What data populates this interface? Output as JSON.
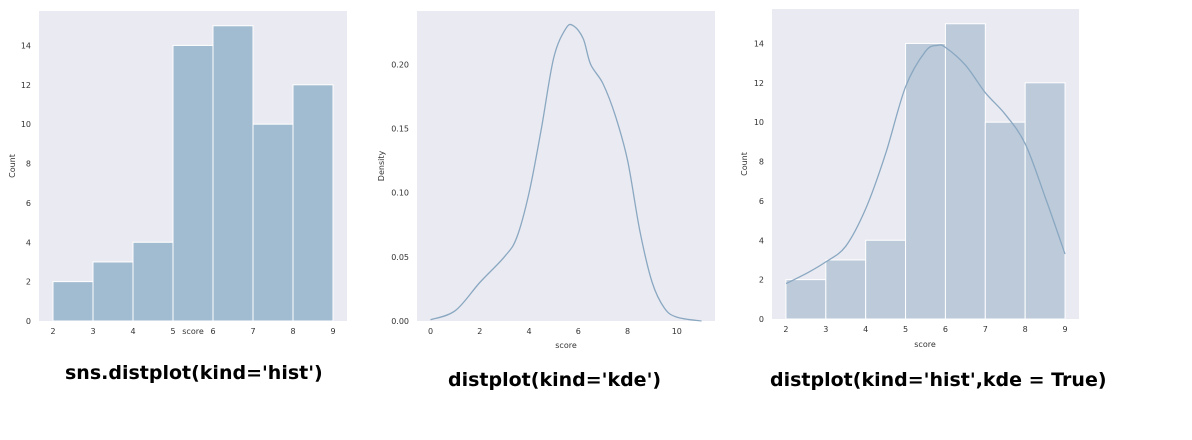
{
  "colors": {
    "panel": "#eaeaf2",
    "bar": "#a1bbd0",
    "bar_light": "#bccada",
    "line": "#8aa8c1"
  },
  "captions": [
    "sns.distplot(kind='hist')",
    "distplot(kind='kde')",
    "distplot(kind='hist',kde = True)"
  ],
  "chart_data": [
    {
      "type": "bar",
      "bin_edges": [
        2,
        3,
        4,
        5,
        6,
        7,
        8,
        9
      ],
      "values": [
        2,
        3,
        4,
        14,
        15,
        10,
        12
      ],
      "xlabel": "score",
      "ylabel": "Count",
      "xticks": [
        2,
        3,
        4,
        5,
        6,
        7,
        8,
        9
      ],
      "yticks": [
        0,
        2,
        4,
        6,
        8,
        10,
        12,
        14
      ],
      "xlim": [
        1.65,
        9.35
      ],
      "ylim": [
        0,
        15.75
      ],
      "grid": false
    },
    {
      "type": "line",
      "x": [
        0,
        1,
        2,
        3,
        3.5,
        4,
        4.5,
        5,
        5.5,
        5.8,
        6.2,
        6.5,
        7,
        7.5,
        8,
        8.5,
        9,
        9.5,
        10,
        11
      ],
      "y": [
        0.001,
        0.008,
        0.03,
        0.05,
        0.065,
        0.1,
        0.15,
        0.205,
        0.228,
        0.23,
        0.22,
        0.2,
        0.185,
        0.16,
        0.125,
        0.07,
        0.03,
        0.01,
        0.003,
        0.0
      ],
      "xlabel": "score",
      "ylabel": "Density",
      "xticks": [
        0,
        2,
        4,
        6,
        8,
        10
      ],
      "yticks": [
        "0.00",
        "0.05",
        "0.10",
        "0.15",
        "0.20"
      ],
      "xlim": [
        -0.55,
        11.55
      ],
      "ylim": [
        0,
        0.2415
      ],
      "grid": false
    },
    {
      "type": "bar",
      "bin_edges": [
        2,
        3,
        4,
        5,
        6,
        7,
        8,
        9
      ],
      "values": [
        2,
        3,
        4,
        14,
        15,
        10,
        12
      ],
      "kde": {
        "x": [
          2,
          2.5,
          3,
          3.5,
          4,
          4.5,
          5,
          5.5,
          5.8,
          6,
          6.5,
          7,
          7.5,
          8,
          8.5,
          9
        ],
        "y": [
          1.8,
          2.3,
          2.9,
          3.7,
          5.6,
          8.4,
          11.8,
          13.6,
          13.9,
          13.8,
          12.9,
          11.5,
          10.4,
          8.9,
          6.2,
          3.3
        ]
      },
      "xlabel": "score",
      "ylabel": "Count",
      "xticks": [
        2,
        3,
        4,
        5,
        6,
        7,
        8,
        9
      ],
      "yticks": [
        0,
        2,
        4,
        6,
        8,
        10,
        12,
        14
      ],
      "xlim": [
        1.65,
        9.35
      ],
      "ylim": [
        0,
        15.75
      ],
      "grid": false
    }
  ]
}
